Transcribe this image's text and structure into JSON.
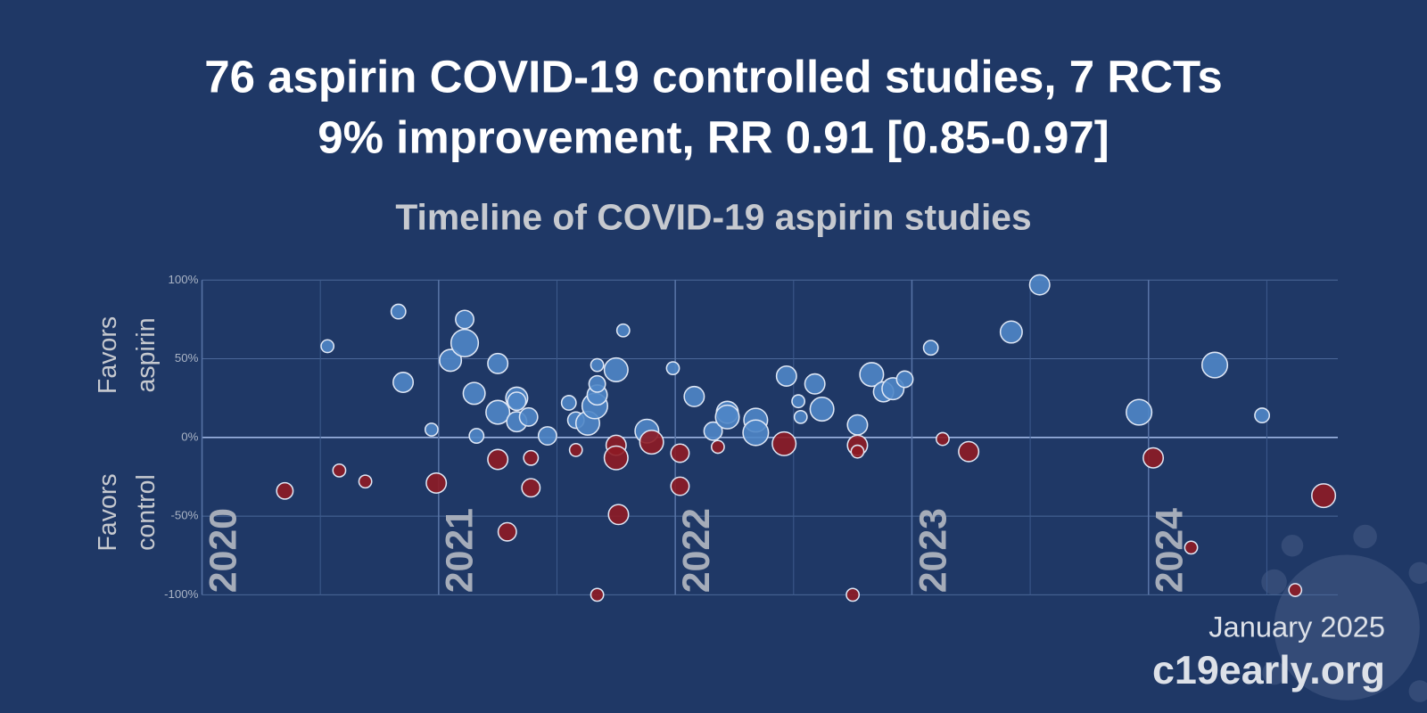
{
  "chart_data": {
    "type": "bubble",
    "title_lines": [
      "76 aspirin COVID-19 controlled studies, 7 RCTs",
      "9% improvement, RR 0.91 [0.85-0.97]"
    ],
    "subtitle": "Timeline of COVID-19 aspirin studies",
    "annotations": [
      [
        "Favors",
        "aspirin"
      ],
      [
        "Favors",
        "control"
      ]
    ],
    "date": "January 2025",
    "site": "c19early.org",
    "xlim": [
      2020,
      2024.8
    ],
    "xticks": [
      2020,
      2021,
      2022,
      2023,
      2024
    ],
    "xgrid_minor": [
      2020.5,
      2021.5,
      2022.5,
      2023.5,
      2024.5
    ],
    "ylim": [
      -100,
      100
    ],
    "yticks": [
      {
        "value": -100,
        "label": "-100%"
      },
      {
        "value": -50,
        "label": "-50%"
      },
      {
        "value": 0,
        "label": "0%"
      },
      {
        "value": 50,
        "label": "50%"
      },
      {
        "value": 100,
        "label": "100%"
      }
    ],
    "grid": true,
    "series": [
      {
        "color": "#4f86c6",
        "x": [
          2020.53,
          2020.83,
          2020.85,
          2020.97,
          2021.05,
          2021.11,
          2021.11,
          2021.15,
          2021.16,
          2021.25,
          2021.25,
          2021.33,
          2021.33,
          2021.33,
          2021.38,
          2021.46,
          2021.55,
          2021.58,
          2021.63,
          2021.66,
          2021.67,
          2021.67,
          2021.67,
          2021.75,
          2021.78,
          2021.88,
          2021.99,
          2022.08,
          2022.16,
          2022.22,
          2022.22,
          2022.34,
          2022.34,
          2022.47,
          2022.52,
          2022.53,
          2022.59,
          2022.62,
          2022.77,
          2022.83,
          2022.88,
          2022.92,
          2022.97,
          2023.08,
          2023.42,
          2023.54,
          2023.96,
          2024.28,
          2024.48
        ],
        "values": [
          58,
          80,
          35,
          5,
          49,
          75,
          60,
          28,
          1,
          47,
          16,
          25,
          23,
          10,
          13,
          1,
          22,
          11,
          9,
          20,
          27,
          34,
          46,
          43,
          68,
          4,
          44,
          26,
          4,
          16,
          13,
          11,
          3,
          39,
          23,
          13,
          34,
          18,
          8,
          40,
          29,
          31,
          37,
          57,
          67,
          97,
          16,
          46,
          14
        ],
        "sizes": [
          7,
          8,
          11,
          7,
          12,
          10,
          15,
          12,
          8,
          11,
          13,
          12,
          10,
          11,
          10,
          10,
          8,
          9,
          13,
          14,
          11,
          9,
          7,
          13,
          7,
          13,
          7,
          11,
          10,
          12,
          13,
          13,
          14,
          11,
          7,
          7,
          11,
          13,
          11,
          13,
          11,
          12,
          9,
          8,
          12,
          11,
          14,
          14,
          8
        ]
      },
      {
        "color": "#8e1b24",
        "x": [
          2020.35,
          2020.58,
          2020.69,
          2020.99,
          2021.25,
          2021.39,
          2021.39,
          2021.29,
          2021.58,
          2021.67,
          2021.75,
          2021.75,
          2021.76,
          2021.9,
          2022.02,
          2022.02,
          2022.18,
          2022.46,
          2022.77,
          2022.77,
          2022.75,
          2023.13,
          2023.24,
          2024.02,
          2024.18,
          2024.62,
          2024.74
        ],
        "values": [
          -34,
          -21,
          -28,
          -29,
          -14,
          -13,
          -32,
          -60,
          -8,
          -100,
          -5,
          -13,
          -49,
          -3,
          -10,
          -31,
          -6,
          -4,
          -5,
          -9,
          -100,
          -1,
          -9,
          -13,
          -70,
          -97,
          -37
        ],
        "sizes": [
          9,
          7,
          7,
          11,
          11,
          8,
          10,
          10,
          7,
          7,
          11,
          13,
          11,
          13,
          10,
          10,
          7,
          13,
          11,
          7,
          7,
          7,
          11,
          11,
          7,
          7,
          13
        ]
      }
    ]
  }
}
